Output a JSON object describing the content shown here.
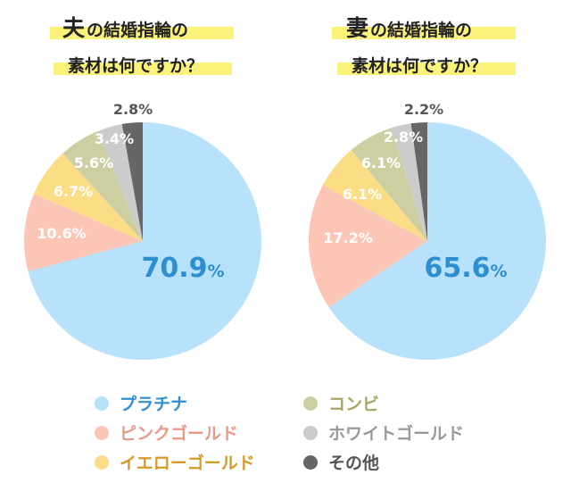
{
  "charts": [
    {
      "title_head": "夫",
      "title_line1_rest": "の結婚指輪の",
      "title_line2": "素材は何ですか？"
    },
    {
      "title_head": "妻",
      "title_line1_rest": "の結婚指輪の",
      "title_line2": "素材は何ですか？"
    }
  ],
  "chart_data": [
    {
      "type": "pie",
      "categories": [
        "プラチナ",
        "ピンクゴールド",
        "イエローゴールド",
        "コンビ",
        "ホワイトゴールド",
        "その他"
      ],
      "values": [
        70.9,
        10.6,
        6.7,
        5.6,
        3.4,
        2.8
      ],
      "value_labels": [
        "70.9",
        "10.6%",
        "6.7%",
        "5.6%",
        "3.4%",
        "2.8%"
      ],
      "value_suffix_big": "%",
      "colors": [
        "#b8e2fb",
        "#fcc6b7",
        "#fbdd85",
        "#cdcfa3",
        "#cccccc",
        "#666666"
      ],
      "label_colors": [
        "#2e8fd0",
        "#ffffff",
        "#ffffff",
        "#ffffff",
        "#ffffff",
        "#555555"
      ],
      "start_angle_deg": 0,
      "direction": "clockwise"
    },
    {
      "type": "pie",
      "categories": [
        "プラチナ",
        "ピンクゴールド",
        "イエローゴールド",
        "コンビ",
        "ホワイトゴールド",
        "その他"
      ],
      "values": [
        65.6,
        17.2,
        6.1,
        6.1,
        2.8,
        2.2
      ],
      "value_labels": [
        "65.6",
        "17.2%",
        "6.1%",
        "6.1%",
        "2.8%",
        "2.2%"
      ],
      "value_suffix_big": "%",
      "colors": [
        "#b8e2fb",
        "#fcc6b7",
        "#fbdd85",
        "#cdcfa3",
        "#cccccc",
        "#666666"
      ],
      "label_colors": [
        "#2e8fd0",
        "#ffffff",
        "#ffffff",
        "#ffffff",
        "#ffffff",
        "#555555"
      ],
      "start_angle_deg": 0,
      "direction": "clockwise"
    }
  ],
  "legend": [
    {
      "label": "プラチナ",
      "color": "#b8e2fb",
      "text_color": "#2e8fd0"
    },
    {
      "label": "ピンクゴールド",
      "color": "#fcc6b7",
      "text_color": "#e79a86"
    },
    {
      "label": "イエローゴールド",
      "color": "#fbdd85",
      "text_color": "#d49a2a"
    },
    {
      "label": "コンビ",
      "color": "#cdcfa3",
      "text_color": "#a8a565"
    },
    {
      "label": "ホワイトゴールド",
      "color": "#cccccc",
      "text_color": "#999999"
    },
    {
      "label": "その他",
      "color": "#666666",
      "text_color": "#555555"
    }
  ]
}
